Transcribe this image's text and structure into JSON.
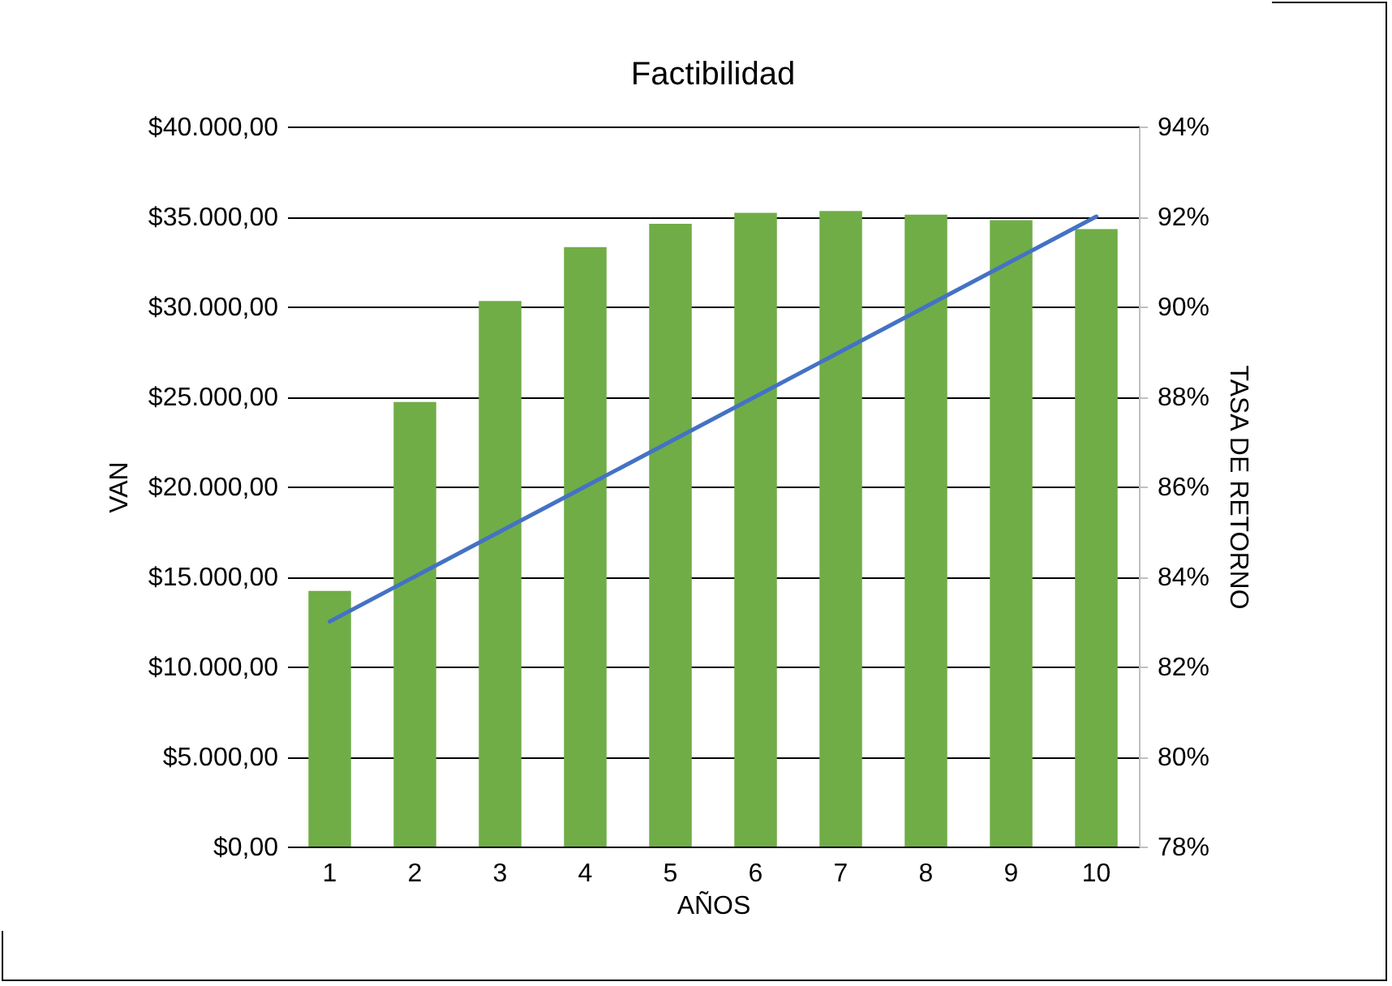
{
  "chart_data": {
    "type": "bar",
    "title": "Factibilidad",
    "xlabel": "AÑOS",
    "ylabel": "VAN",
    "y2label": "TASA DE RETORNO",
    "categories": [
      "1",
      "2",
      "3",
      "4",
      "5",
      "6",
      "7",
      "8",
      "9",
      "10"
    ],
    "series": [
      {
        "color": "#70ad47",
        "values": [
          14200,
          24700,
          30300,
          33300,
          34600,
          35200,
          35300,
          35100,
          34800,
          34300
        ]
      },
      {
        "type": "line",
        "axis": "y2",
        "color": "#4472c4",
        "values": [
          83,
          84,
          85,
          86,
          87,
          88,
          89,
          90,
          91,
          92
        ]
      }
    ],
    "ylim": [
      0,
      40000
    ],
    "yticks": [
      {
        "value": 0,
        "label": "$0,00"
      },
      {
        "value": 5000,
        "label": "$5.000,00"
      },
      {
        "value": 10000,
        "label": "$10.000,00"
      },
      {
        "value": 15000,
        "label": "$15.000,00"
      },
      {
        "value": 20000,
        "label": "$20.000,00"
      },
      {
        "value": 25000,
        "label": "$25.000,00"
      },
      {
        "value": 30000,
        "label": "$30.000,00"
      },
      {
        "value": 35000,
        "label": "$35.000,00"
      },
      {
        "value": 40000,
        "label": "$40.000,00"
      }
    ],
    "y2lim": [
      78,
      94
    ],
    "y2ticks": [
      {
        "value": 78,
        "label": "78%"
      },
      {
        "value": 80,
        "label": "80%"
      },
      {
        "value": 82,
        "label": "82%"
      },
      {
        "value": 84,
        "label": "84%"
      },
      {
        "value": 86,
        "label": "86%"
      },
      {
        "value": 88,
        "label": "88%"
      },
      {
        "value": 90,
        "label": "90%"
      },
      {
        "value": 92,
        "label": "92%"
      },
      {
        "value": 94,
        "label": "94%"
      }
    ],
    "grid": "y",
    "marker": "none",
    "line_style": "solid"
  }
}
